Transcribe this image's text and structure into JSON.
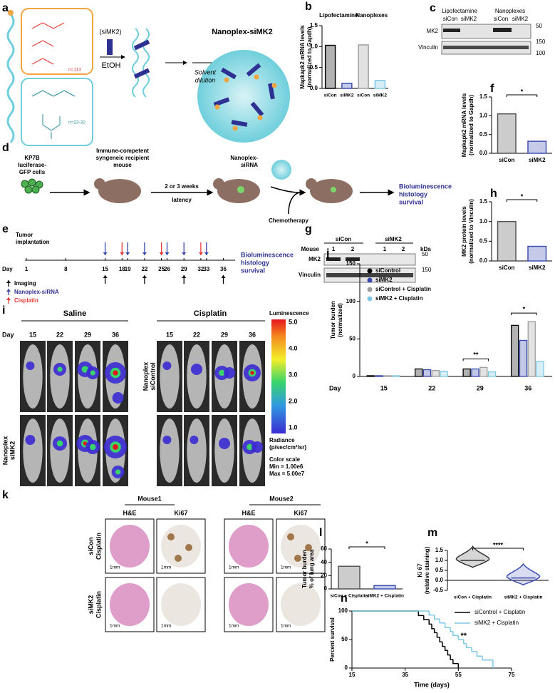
{
  "panels": {
    "a": {
      "label": "a",
      "polymer_n": [
        "n=113",
        "n=23-32"
      ],
      "sirna": "(siMK2)",
      "solvent": "EtOH",
      "dilution": [
        "Solvent",
        "dilution"
      ],
      "title": "Nanoplex-siMK2"
    },
    "c": {
      "label": "c",
      "groups": [
        "Lipofectamine",
        "Nanoplexes"
      ],
      "lanes": [
        "siCon",
        "siMK2",
        "siCon",
        "siMK2"
      ],
      "rows": [
        "MK2",
        "Vinculin"
      ],
      "markers": [
        "50",
        "150",
        "100"
      ]
    },
    "d": {
      "label": "d",
      "cells": [
        "KP7B",
        "luciferase-",
        "GFP cells"
      ],
      "mouse": [
        "Immune-competent",
        "syngeneic recipient",
        "mouse"
      ],
      "latency": [
        "2 or 3 weeks",
        "latency"
      ],
      "nanoplex": [
        "Nanoplex-",
        "siRNA"
      ],
      "chemo": "Chemotherapy",
      "outcome": [
        "Bioluminescence",
        "histology",
        "survival"
      ]
    },
    "e": {
      "label": "e",
      "implant": [
        "Tumor",
        "implantation"
      ],
      "day": "Day",
      "days": [
        "1",
        "8",
        "15",
        "18",
        "19",
        "22",
        "25",
        "26",
        "29",
        "32",
        "33",
        "36"
      ],
      "legend": [
        "Imaging",
        "Nanoplex-siRNA",
        "Cisplatin"
      ],
      "outcome": [
        "Bioluminescence",
        "histology",
        "survival"
      ]
    },
    "g": {
      "label": "g",
      "groups": [
        "siCon",
        "siMK2"
      ],
      "mouse": "Mouse",
      "lanes": [
        "1",
        "2",
        "1",
        "2"
      ],
      "kda": "kDa",
      "rows": [
        "MK2",
        "Vinculin"
      ],
      "markers": [
        "50",
        "150"
      ]
    },
    "i": {
      "label": "i",
      "groups": [
        "Saline",
        "Cisplatin"
      ],
      "day": "Day",
      "days": [
        "15",
        "22",
        "29",
        "36"
      ],
      "rows": [
        [
          "Nanoplex",
          "siControl"
        ],
        [
          "Nanoplex",
          "siMK2"
        ]
      ],
      "scale_title": "Luminescence",
      "scale_ticks": [
        "5.0",
        "4.0",
        "3.0",
        "2.0",
        "1.0"
      ],
      "scale_unit": [
        "Radiance",
        "(p/sec/cm²/sr)"
      ],
      "scale_info": [
        "Color scale",
        "Min = 1.00e6",
        "Max = 5.00e7"
      ]
    },
    "k": {
      "label": "k",
      "mice": [
        "Mouse1",
        "Mouse2"
      ],
      "stains": [
        "H&E",
        "Ki67",
        "H&E",
        "Ki67"
      ],
      "rows": [
        [
          "siCon",
          "Cisplatin"
        ],
        [
          "siMK2",
          "Cisplatin"
        ]
      ],
      "scale": "1mm"
    }
  },
  "chart_data": [
    {
      "type": "bar",
      "panel": "b",
      "ylabel": [
        "Mapkapk2 mRNA levels",
        "(normalized to Gapdh)"
      ],
      "groups": [
        "Lipofectamine",
        "Nanoplexes"
      ],
      "categories": [
        "siCon",
        "siMK2",
        "siCon",
        "siMK2"
      ],
      "values": [
        1.03,
        0.12,
        1.04,
        0.19
      ],
      "colors": [
        "#000000",
        "#3f51b5",
        "#9e9e9e",
        "#7ec8e3"
      ],
      "ylim": [
        0,
        1.5
      ],
      "yticks": [
        {
          "value": 0,
          "label": "0.0"
        },
        0.5,
        {
          "value": 1,
          "label": "1.0"
        },
        1.5
      ]
    },
    {
      "type": "bar",
      "panel": "f",
      "ylabel": [
        "Mapkapk2 mRNA levels",
        "(normalized to Gapdh)"
      ],
      "annotation": "*",
      "categories": [
        "siCon",
        "siMK2"
      ],
      "values": [
        1.05,
        0.32
      ],
      "colors": [
        "#555555",
        "#3f51b5"
      ],
      "ylim": [
        0,
        1.5
      ],
      "yticks": [
        {
          "value": 0,
          "label": "0.0"
        },
        0.5,
        {
          "value": 1,
          "label": "1.0"
        },
        1.5
      ]
    },
    {
      "type": "bar",
      "panel": "h",
      "ylabel": [
        "MK2 protein levels",
        "(normalized to Vinculin)"
      ],
      "annotation": "*",
      "categories": [
        "siCon",
        "siMK2"
      ],
      "values": [
        1.0,
        0.37
      ],
      "colors": [
        "#555555",
        "#3f51b5"
      ],
      "ylim": [
        0,
        1.5
      ],
      "yticks": [
        {
          "value": 0,
          "label": "0.0"
        },
        0.5,
        {
          "value": 1,
          "label": "1.0"
        },
        1.5
      ]
    },
    {
      "type": "grouped_bar",
      "panel": "j",
      "ylabel": [
        "Tumor burden",
        "(normalized)"
      ],
      "xlabel": "Day",
      "annotations": [
        "**",
        "*"
      ],
      "legend": "upper left",
      "categories": [
        "15",
        "22",
        "29",
        "36"
      ],
      "series": [
        {
          "name": "siControl",
          "color": "#000000",
          "values": [
            1,
            10,
            10,
            68
          ]
        },
        {
          "name": "siMK2",
          "color": "#3949ab",
          "values": [
            1,
            9,
            10,
            48
          ]
        },
        {
          "name": "siControl + Cisplatin",
          "color": "#9e9e9e",
          "values": [
            1,
            8,
            12,
            73
          ]
        },
        {
          "name": "siMK2 + Cisplatin",
          "color": "#7ec8e3",
          "values": [
            1,
            7,
            6,
            20
          ]
        }
      ],
      "ylim": [
        0,
        150
      ],
      "yticks": [
        0,
        50,
        100,
        150
      ]
    },
    {
      "type": "bar",
      "panel": "l",
      "ylabel": [
        "Tumor burden",
        "% of lung area"
      ],
      "annotation": "*",
      "categories": [
        "siCon + Cisplatin",
        "siMK2 + Cisplatin"
      ],
      "values": [
        34,
        5
      ],
      "colors": [
        "#555555",
        "#3f51b5"
      ],
      "ylim": [
        0,
        60
      ],
      "yticks": [
        0,
        20,
        40,
        60
      ]
    },
    {
      "type": "violin",
      "panel": "m",
      "ylabel": [
        "Ki 67",
        "(relative staining)"
      ],
      "annotation": "****",
      "categories": [
        "siCon + Cisplatin",
        "siMK2 + Cisplatin"
      ],
      "values": [
        1.0,
        0.12
      ],
      "colors": [
        "#333333",
        "#3f51b5"
      ],
      "ylim": [
        -0.5,
        1.5
      ],
      "yticks": [
        -0.5,
        {
          "value": 0,
          "label": "0.0"
        },
        0.5,
        {
          "value": 1,
          "label": "1.0"
        },
        1.5
      ]
    },
    {
      "type": "step",
      "panel": "n",
      "ylabel": "Percent survival",
      "xlabel": "Time (days)",
      "annotation": "**",
      "legend": "upper right",
      "series": [
        {
          "name": "siControl + Cisplatin",
          "color": "#000000",
          "x": [
            15,
            40,
            42,
            44,
            45,
            46,
            47,
            48,
            49,
            50,
            51,
            52,
            53,
            55
          ],
          "values": [
            100,
            92,
            85,
            77,
            69,
            62,
            54,
            46,
            38,
            31,
            23,
            15,
            8,
            0
          ]
        },
        {
          "name": "siMK2 + Cisplatin",
          "color": "#7ec8e3",
          "x": [
            15,
            44,
            46,
            48,
            50,
            52,
            53,
            55,
            57,
            58,
            60,
            62,
            64,
            68
          ],
          "values": [
            100,
            93,
            86,
            79,
            71,
            64,
            57,
            50,
            43,
            36,
            29,
            21,
            14,
            0
          ]
        }
      ],
      "xlim": [
        15,
        75
      ],
      "xticks": [
        15,
        35,
        55,
        75
      ],
      "ylim": [
        0,
        100
      ],
      "yticks": [
        0,
        50,
        100
      ]
    }
  ]
}
